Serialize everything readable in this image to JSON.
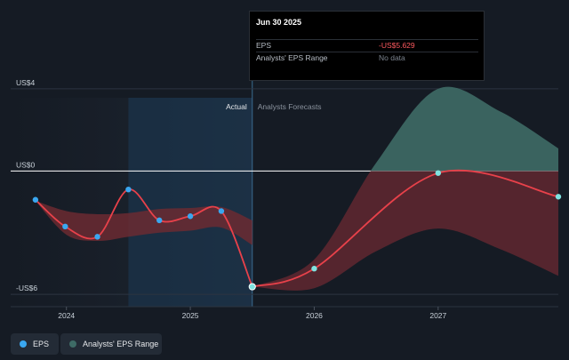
{
  "tooltip": {
    "date": "Jun 30 2025",
    "eps_label": "EPS",
    "eps_value": "-US$5.629",
    "range_label": "Analysts' EPS Range",
    "range_value": "No data"
  },
  "labels": {
    "actual": "Actual",
    "forecasts": "Analysts Forecasts"
  },
  "legend": {
    "eps": "EPS",
    "range": "Analysts' EPS Range"
  },
  "colors": {
    "eps_line": "#e8414a",
    "eps_point": "#3aa7f0",
    "forecast_point": "#7fe3e0",
    "range_positive": "#3e6b66",
    "range_negative": "#6b2a31",
    "highlight": "#1b3a55"
  },
  "chart_data": {
    "type": "line",
    "y_ticks": [
      {
        "value": 4,
        "label": "US$4"
      },
      {
        "value": 0,
        "label": "US$0"
      },
      {
        "value": -6,
        "label": "-US$6"
      }
    ],
    "x_ticks": [
      {
        "value": 2024,
        "label": "2024"
      },
      {
        "value": 2025,
        "label": "2025"
      },
      {
        "value": 2026,
        "label": "2026"
      },
      {
        "value": 2027,
        "label": "2027"
      }
    ],
    "ylim": [
      -6.6,
      4.6
    ],
    "xlim": [
      2023.55,
      2027.97
    ],
    "actual_boundary": 2025.5,
    "highlight_range": [
      2024.5,
      2025.5
    ],
    "series": [
      {
        "name": "EPS",
        "kind": "actual",
        "points": [
          {
            "x": 2023.75,
            "y": -1.4
          },
          {
            "x": 2023.99,
            "y": -2.7
          },
          {
            "x": 2024.25,
            "y": -3.2
          },
          {
            "x": 2024.5,
            "y": -0.9
          },
          {
            "x": 2024.75,
            "y": -2.4
          },
          {
            "x": 2025.0,
            "y": -2.2
          },
          {
            "x": 2025.25,
            "y": -1.95
          },
          {
            "x": 2025.5,
            "y": -5.629
          }
        ]
      },
      {
        "name": "EPS",
        "kind": "forecast",
        "points": [
          {
            "x": 2025.5,
            "y": -5.629
          },
          {
            "x": 2026.0,
            "y": -4.75
          },
          {
            "x": 2027.0,
            "y": -0.1
          },
          {
            "x": 2027.97,
            "y": -1.25
          }
        ]
      }
    ],
    "actual_band": {
      "x": [
        2023.75,
        2024.0,
        2024.25,
        2024.5,
        2024.75,
        2025.0,
        2025.25,
        2025.5
      ],
      "upper": [
        -1.45,
        -1.95,
        -2.1,
        -2.05,
        -1.85,
        -1.8,
        -1.75,
        -2.4
      ],
      "lower": [
        -1.45,
        -3.1,
        -3.4,
        -3.2,
        -3.0,
        -2.9,
        -2.75,
        -3.6
      ]
    },
    "forecast_band": {
      "x": [
        2025.5,
        2026.0,
        2026.5,
        2027.0,
        2027.5,
        2027.97
      ],
      "upper": [
        -5.629,
        -4.3,
        0.4,
        4.0,
        2.9,
        1.1
      ],
      "lower": [
        -5.629,
        -5.7,
        -3.9,
        -2.8,
        -3.8,
        -5.1
      ]
    }
  }
}
